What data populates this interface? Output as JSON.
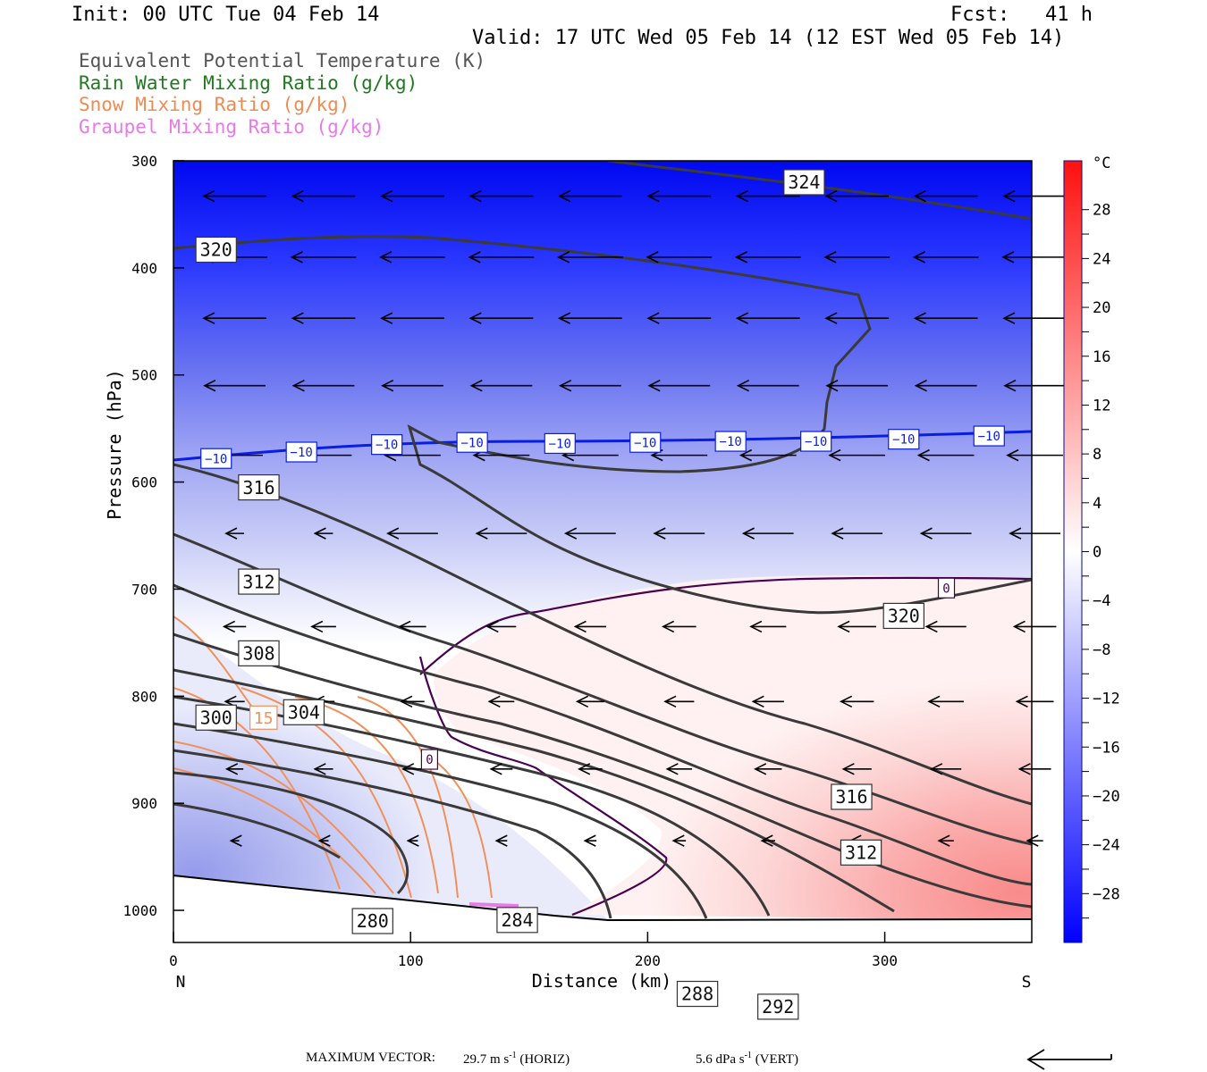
{
  "header": {
    "init": "Init: 00 UTC Tue 04 Feb 14",
    "fcst": "Fcst:   41 h",
    "valid": "Valid: 17 UTC Wed 05 Feb 14 (12 EST Wed 05 Feb 14)"
  },
  "legend": [
    {
      "text": "Equivalent Potential Temperature (K)",
      "color": "#555555"
    },
    {
      "text": "Rain Water Mixing Ratio (g/kg)",
      "color": "#1f7a1f"
    },
    {
      "text": "Snow Mixing Ratio (g/kg)",
      "color": "#f08a50"
    },
    {
      "text": "Graupel Mixing Ratio (g/kg)",
      "color": "#e87ae8"
    }
  ],
  "footer": {
    "label": "MAXIMUM VECTOR:",
    "horiz": "29.7 m s",
    "horiz_unit": "-1",
    "horiz_tag": " (HORIZ)",
    "vert": "5.6 dPa s",
    "vert_unit": "-1",
    "vert_tag": " (VERT)"
  },
  "chart_data": {
    "type": "contour",
    "xlabel": "Distance (km)",
    "ylabel": "Pressure (hPa)",
    "x_range": [
      0,
      362
    ],
    "y_range": [
      1030,
      300
    ],
    "x_ticks": [
      "0",
      "100",
      "200",
      "300"
    ],
    "x_tick_values": [
      0,
      100,
      200,
      300
    ],
    "y_ticks": [
      "300",
      "400",
      "500",
      "600",
      "700",
      "800",
      "900",
      "1000"
    ],
    "y_tick_values": [
      300,
      400,
      500,
      600,
      700,
      800,
      900,
      1000
    ],
    "x_end_labels": {
      "left": "N",
      "right": "S"
    },
    "colorbar": {
      "unit": "°C",
      "labels": [
        "28",
        "24",
        "20",
        "16",
        "12",
        "8",
        "4",
        "0",
        "−4",
        "−8",
        "−12",
        "−16",
        "−20",
        "−24",
        "−28"
      ],
      "label_values": [
        28,
        24,
        20,
        16,
        12,
        8,
        4,
        0,
        -4,
        -8,
        -12,
        -16,
        -20,
        -24,
        -28
      ],
      "min": -32,
      "max": 32,
      "cold_color": "#0000ff",
      "warm_color": "#ff0000"
    },
    "theta_e_labels": [
      {
        "text": "324",
        "x": 266,
        "p": 320
      },
      {
        "text": "320",
        "x": 18,
        "p": 383
      },
      {
        "text": "316",
        "x": 36,
        "p": 605
      },
      {
        "text": "312",
        "x": 36,
        "p": 693
      },
      {
        "text": "308",
        "x": 36,
        "p": 760
      },
      {
        "text": "304",
        "x": 55,
        "p": 815
      },
      {
        "text": "300",
        "x": 18,
        "p": 820
      },
      {
        "text": "320",
        "x": 308,
        "p": 725
      },
      {
        "text": "316",
        "x": 286,
        "p": 894
      },
      {
        "text": "312",
        "x": 290,
        "p": 946
      },
      {
        "text": "280",
        "x": 84,
        "p": 1010
      },
      {
        "text": "284",
        "x": 145,
        "p": 1009
      },
      {
        "text": "288",
        "x": 221,
        "p": 1078
      },
      {
        "text": "292",
        "x": 255,
        "p": 1090
      }
    ],
    "temp_labels": [
      {
        "text": "−10",
        "x": 18,
        "p": 578
      },
      {
        "text": "−10",
        "x": 54,
        "p": 572
      },
      {
        "text": "−10",
        "x": 90,
        "p": 565
      },
      {
        "text": "−10",
        "x": 126,
        "p": 563
      },
      {
        "text": "−10",
        "x": 163,
        "p": 564
      },
      {
        "text": "−10",
        "x": 199,
        "p": 563
      },
      {
        "text": "−10",
        "x": 235,
        "p": 562
      },
      {
        "text": "−10",
        "x": 271,
        "p": 562
      },
      {
        "text": "−10",
        "x": 308,
        "p": 560
      },
      {
        "text": "−10",
        "x": 344,
        "p": 557
      },
      {
        "text": "0",
        "x": 326,
        "p": 699
      },
      {
        "text": "0",
        "x": 108,
        "p": 859
      }
    ],
    "snow_labels": [
      {
        "text": "15",
        "x": 38,
        "p": 820
      }
    ]
  }
}
